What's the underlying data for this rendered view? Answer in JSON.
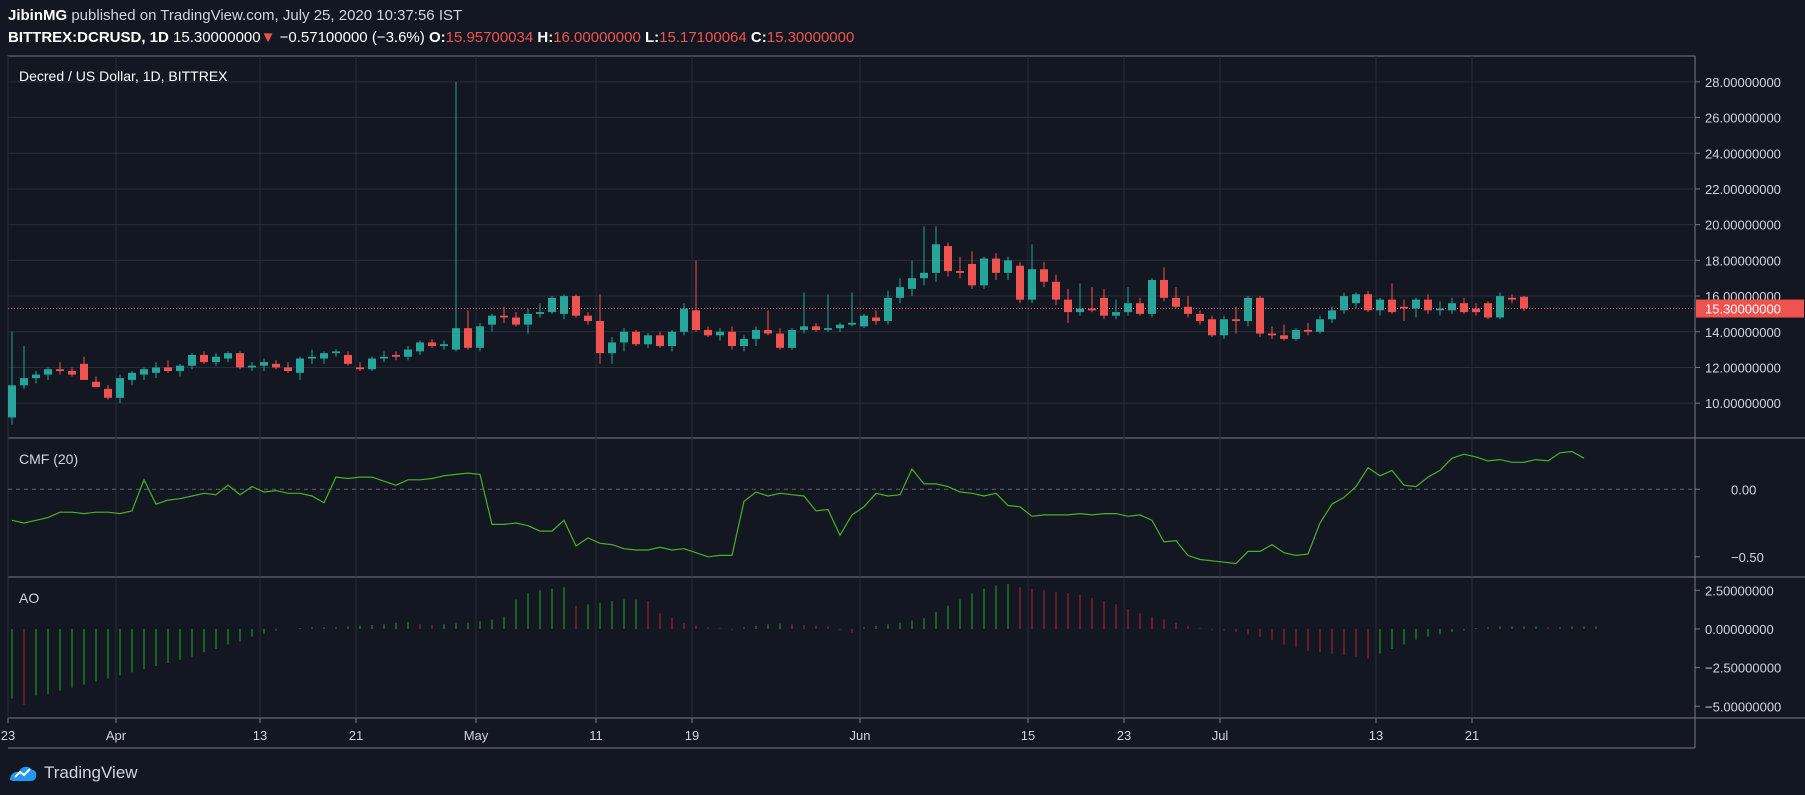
{
  "header": {
    "author": "JibinMG",
    "published_text": "published on TradingView.com, July 25, 2020 10:37:56 IST",
    "symbol": "BITTREX:DCRUSD, 1D",
    "last": "15.30000000",
    "change": "−0.57100000 (−3.6%)",
    "o_label": "O:",
    "o_value": "15.95700034",
    "h_label": "H:",
    "h_value": "16.00000000",
    "l_label": "L:",
    "l_value": "15.17100064",
    "c_label": "C:",
    "c_value": "15.30000000"
  },
  "footer": {
    "brand": "TradingView"
  },
  "colors": {
    "background": "#131722",
    "grid": "#2a2e39",
    "up": "#26a69a",
    "down": "#ef5350",
    "cmf_line": "#4caf27",
    "ao_up": "#26a629",
    "ao_down": "#b22833",
    "border": "#787b86"
  },
  "chart_data": [
    {
      "type": "candlestick",
      "title": "Decred / US Dollar, 1D, BITTREX",
      "ylim": [
        9,
        29
      ],
      "yticks": [
        "10.00000000",
        "12.00000000",
        "14.00000000",
        "16.00000000",
        "18.00000000",
        "20.00000000",
        "22.00000000",
        "24.00000000",
        "26.00000000",
        "28.00000000"
      ],
      "last_price_label": "15.30000000",
      "last_price": 15.3,
      "x_tick_labels": [
        "23",
        "Apr",
        "13",
        "21",
        "May",
        "11",
        "19",
        "Jun",
        "15",
        "23",
        "Jul",
        "13",
        "21"
      ],
      "x_tick_days": [
        0,
        9,
        21,
        29,
        39,
        49,
        57,
        71,
        85,
        93,
        101,
        114,
        122
      ],
      "candles": [
        {
          "o": 9.2,
          "h": 14.0,
          "l": 8.8,
          "c": 11.0
        },
        {
          "o": 11.0,
          "h": 13.2,
          "l": 10.8,
          "c": 11.4
        },
        {
          "o": 11.4,
          "h": 11.8,
          "l": 11.1,
          "c": 11.6
        },
        {
          "o": 11.6,
          "h": 12.0,
          "l": 11.3,
          "c": 11.9
        },
        {
          "o": 11.9,
          "h": 12.3,
          "l": 11.6,
          "c": 11.8
        },
        {
          "o": 11.8,
          "h": 12.0,
          "l": 11.5,
          "c": 11.6
        },
        {
          "o": 12.2,
          "h": 12.6,
          "l": 11.3,
          "c": 11.3
        },
        {
          "o": 11.2,
          "h": 11.5,
          "l": 10.9,
          "c": 10.9
        },
        {
          "o": 10.8,
          "h": 11.0,
          "l": 10.2,
          "c": 10.3
        },
        {
          "o": 10.3,
          "h": 11.6,
          "l": 10.0,
          "c": 11.4
        },
        {
          "o": 11.3,
          "h": 11.8,
          "l": 11.0,
          "c": 11.7
        },
        {
          "o": 11.6,
          "h": 12.0,
          "l": 11.3,
          "c": 11.9
        },
        {
          "o": 11.7,
          "h": 12.3,
          "l": 11.4,
          "c": 12.0
        },
        {
          "o": 12.0,
          "h": 12.4,
          "l": 11.7,
          "c": 11.8
        },
        {
          "o": 11.8,
          "h": 12.2,
          "l": 11.5,
          "c": 12.1
        },
        {
          "o": 12.1,
          "h": 12.8,
          "l": 11.9,
          "c": 12.7
        },
        {
          "o": 12.7,
          "h": 12.9,
          "l": 12.2,
          "c": 12.3
        },
        {
          "o": 12.3,
          "h": 12.8,
          "l": 12.1,
          "c": 12.6
        },
        {
          "o": 12.5,
          "h": 12.9,
          "l": 12.3,
          "c": 12.8
        },
        {
          "o": 12.8,
          "h": 12.9,
          "l": 11.9,
          "c": 12.0
        },
        {
          "o": 12.0,
          "h": 12.3,
          "l": 11.8,
          "c": 12.1
        },
        {
          "o": 12.1,
          "h": 12.5,
          "l": 11.8,
          "c": 12.3
        },
        {
          "o": 12.2,
          "h": 12.4,
          "l": 11.9,
          "c": 12.0
        },
        {
          "o": 12.0,
          "h": 12.3,
          "l": 11.7,
          "c": 11.8
        },
        {
          "o": 11.7,
          "h": 12.6,
          "l": 11.3,
          "c": 12.5
        },
        {
          "o": 12.5,
          "h": 13.0,
          "l": 12.2,
          "c": 12.6
        },
        {
          "o": 12.5,
          "h": 12.9,
          "l": 12.2,
          "c": 12.8
        },
        {
          "o": 12.8,
          "h": 13.0,
          "l": 12.6,
          "c": 12.9
        },
        {
          "o": 12.7,
          "h": 12.9,
          "l": 12.1,
          "c": 12.2
        },
        {
          "o": 12.0,
          "h": 12.3,
          "l": 11.8,
          "c": 11.9
        },
        {
          "o": 11.9,
          "h": 12.6,
          "l": 11.8,
          "c": 12.5
        },
        {
          "o": 12.5,
          "h": 12.9,
          "l": 12.3,
          "c": 12.6
        },
        {
          "o": 12.7,
          "h": 12.9,
          "l": 12.4,
          "c": 12.6
        },
        {
          "o": 12.6,
          "h": 13.2,
          "l": 12.4,
          "c": 13.0
        },
        {
          "o": 12.9,
          "h": 13.5,
          "l": 12.7,
          "c": 13.4
        },
        {
          "o": 13.4,
          "h": 13.6,
          "l": 13.1,
          "c": 13.2
        },
        {
          "o": 13.2,
          "h": 13.5,
          "l": 13.0,
          "c": 13.3
        },
        {
          "o": 13.0,
          "h": 28.0,
          "l": 12.9,
          "c": 14.2
        },
        {
          "o": 14.2,
          "h": 15.2,
          "l": 13.0,
          "c": 13.1
        },
        {
          "o": 13.1,
          "h": 14.5,
          "l": 12.9,
          "c": 14.3
        },
        {
          "o": 14.4,
          "h": 15.0,
          "l": 14.0,
          "c": 14.9
        },
        {
          "o": 14.9,
          "h": 15.4,
          "l": 14.5,
          "c": 14.8
        },
        {
          "o": 14.8,
          "h": 15.1,
          "l": 14.3,
          "c": 14.4
        },
        {
          "o": 14.4,
          "h": 15.3,
          "l": 13.9,
          "c": 15.0
        },
        {
          "o": 15.0,
          "h": 15.6,
          "l": 14.8,
          "c": 15.1
        },
        {
          "o": 15.1,
          "h": 16.0,
          "l": 15.0,
          "c": 15.9
        },
        {
          "o": 15.0,
          "h": 16.1,
          "l": 14.7,
          "c": 16.0
        },
        {
          "o": 16.0,
          "h": 16.1,
          "l": 14.8,
          "c": 14.9
        },
        {
          "o": 14.9,
          "h": 15.1,
          "l": 14.4,
          "c": 14.6
        },
        {
          "o": 14.6,
          "h": 16.1,
          "l": 12.2,
          "c": 12.8
        },
        {
          "o": 12.8,
          "h": 13.7,
          "l": 12.2,
          "c": 13.4
        },
        {
          "o": 13.4,
          "h": 14.2,
          "l": 12.9,
          "c": 14.0
        },
        {
          "o": 14.0,
          "h": 14.1,
          "l": 13.2,
          "c": 13.3
        },
        {
          "o": 13.3,
          "h": 13.9,
          "l": 13.1,
          "c": 13.8
        },
        {
          "o": 13.8,
          "h": 14.0,
          "l": 13.1,
          "c": 13.2
        },
        {
          "o": 13.2,
          "h": 14.1,
          "l": 12.9,
          "c": 14.0
        },
        {
          "o": 14.0,
          "h": 15.6,
          "l": 13.8,
          "c": 15.3
        },
        {
          "o": 15.2,
          "h": 18.0,
          "l": 14.0,
          "c": 14.1
        },
        {
          "o": 14.1,
          "h": 14.3,
          "l": 13.7,
          "c": 13.8
        },
        {
          "o": 13.8,
          "h": 14.2,
          "l": 13.5,
          "c": 14.0
        },
        {
          "o": 14.0,
          "h": 14.3,
          "l": 13.0,
          "c": 13.2
        },
        {
          "o": 13.2,
          "h": 13.8,
          "l": 12.9,
          "c": 13.6
        },
        {
          "o": 13.6,
          "h": 14.3,
          "l": 13.2,
          "c": 14.1
        },
        {
          "o": 14.1,
          "h": 15.2,
          "l": 13.8,
          "c": 13.9
        },
        {
          "o": 13.9,
          "h": 14.2,
          "l": 13.0,
          "c": 13.1
        },
        {
          "o": 13.1,
          "h": 14.2,
          "l": 13.0,
          "c": 14.1
        },
        {
          "o": 14.1,
          "h": 16.2,
          "l": 13.9,
          "c": 14.3
        },
        {
          "o": 14.3,
          "h": 14.5,
          "l": 14.0,
          "c": 14.1
        },
        {
          "o": 14.1,
          "h": 16.1,
          "l": 14.0,
          "c": 14.2
        },
        {
          "o": 14.2,
          "h": 14.5,
          "l": 14.0,
          "c": 14.4
        },
        {
          "o": 14.4,
          "h": 16.2,
          "l": 14.3,
          "c": 14.5
        },
        {
          "o": 14.3,
          "h": 15.0,
          "l": 14.2,
          "c": 14.9
        },
        {
          "o": 14.8,
          "h": 15.2,
          "l": 14.4,
          "c": 14.6
        },
        {
          "o": 14.6,
          "h": 16.3,
          "l": 14.4,
          "c": 15.9
        },
        {
          "o": 15.9,
          "h": 17.0,
          "l": 15.6,
          "c": 16.5
        },
        {
          "o": 16.4,
          "h": 18.0,
          "l": 16.0,
          "c": 17.0
        },
        {
          "o": 17.0,
          "h": 19.9,
          "l": 16.6,
          "c": 17.3
        },
        {
          "o": 17.3,
          "h": 19.9,
          "l": 16.8,
          "c": 18.9
        },
        {
          "o": 18.8,
          "h": 19.0,
          "l": 17.1,
          "c": 17.4
        },
        {
          "o": 17.4,
          "h": 18.2,
          "l": 17.0,
          "c": 17.3
        },
        {
          "o": 17.8,
          "h": 18.5,
          "l": 16.4,
          "c": 16.6
        },
        {
          "o": 16.6,
          "h": 18.2,
          "l": 16.4,
          "c": 18.1
        },
        {
          "o": 18.1,
          "h": 18.4,
          "l": 16.9,
          "c": 17.3
        },
        {
          "o": 17.3,
          "h": 18.2,
          "l": 16.9,
          "c": 18.0
        },
        {
          "o": 17.7,
          "h": 17.9,
          "l": 15.6,
          "c": 15.8
        },
        {
          "o": 15.8,
          "h": 18.9,
          "l": 15.6,
          "c": 17.5
        },
        {
          "o": 17.5,
          "h": 17.9,
          "l": 16.5,
          "c": 16.8
        },
        {
          "o": 16.8,
          "h": 17.2,
          "l": 15.5,
          "c": 15.8
        },
        {
          "o": 15.8,
          "h": 16.4,
          "l": 14.5,
          "c": 15.1
        },
        {
          "o": 15.1,
          "h": 16.7,
          "l": 14.9,
          "c": 15.3
        },
        {
          "o": 15.3,
          "h": 16.5,
          "l": 15.1,
          "c": 15.2
        },
        {
          "o": 15.9,
          "h": 16.4,
          "l": 14.7,
          "c": 14.9
        },
        {
          "o": 14.9,
          "h": 15.8,
          "l": 14.7,
          "c": 15.1
        },
        {
          "o": 15.1,
          "h": 16.5,
          "l": 14.9,
          "c": 15.6
        },
        {
          "o": 15.6,
          "h": 15.9,
          "l": 14.9,
          "c": 15.0
        },
        {
          "o": 15.0,
          "h": 17.0,
          "l": 14.8,
          "c": 16.9
        },
        {
          "o": 16.9,
          "h": 17.6,
          "l": 15.7,
          "c": 15.9
        },
        {
          "o": 15.9,
          "h": 16.5,
          "l": 15.3,
          "c": 15.4
        },
        {
          "o": 15.4,
          "h": 16.0,
          "l": 14.8,
          "c": 15.0
        },
        {
          "o": 15.0,
          "h": 15.2,
          "l": 14.4,
          "c": 14.6
        },
        {
          "o": 14.7,
          "h": 14.9,
          "l": 13.7,
          "c": 13.8
        },
        {
          "o": 13.8,
          "h": 14.9,
          "l": 13.6,
          "c": 14.7
        },
        {
          "o": 14.7,
          "h": 15.4,
          "l": 13.9,
          "c": 14.6
        },
        {
          "o": 14.6,
          "h": 16.0,
          "l": 14.3,
          "c": 15.9
        },
        {
          "o": 15.9,
          "h": 16.0,
          "l": 13.7,
          "c": 13.9
        },
        {
          "o": 13.9,
          "h": 14.3,
          "l": 13.6,
          "c": 13.8
        },
        {
          "o": 13.8,
          "h": 14.4,
          "l": 13.5,
          "c": 13.6
        },
        {
          "o": 13.6,
          "h": 14.2,
          "l": 13.5,
          "c": 14.1
        },
        {
          "o": 14.1,
          "h": 14.5,
          "l": 13.8,
          "c": 14.0
        },
        {
          "o": 14.0,
          "h": 14.9,
          "l": 13.9,
          "c": 14.7
        },
        {
          "o": 14.7,
          "h": 15.4,
          "l": 14.5,
          "c": 15.2
        },
        {
          "o": 15.2,
          "h": 16.2,
          "l": 15.0,
          "c": 16.0
        },
        {
          "o": 15.6,
          "h": 16.2,
          "l": 15.3,
          "c": 16.1
        },
        {
          "o": 16.1,
          "h": 16.3,
          "l": 15.1,
          "c": 15.2
        },
        {
          "o": 15.2,
          "h": 15.9,
          "l": 14.9,
          "c": 15.8
        },
        {
          "o": 15.8,
          "h": 16.7,
          "l": 15.0,
          "c": 15.1
        },
        {
          "o": 15.4,
          "h": 15.8,
          "l": 14.6,
          "c": 15.3
        },
        {
          "o": 15.3,
          "h": 15.9,
          "l": 14.8,
          "c": 15.8
        },
        {
          "o": 15.8,
          "h": 16.1,
          "l": 15.0,
          "c": 15.2
        },
        {
          "o": 15.2,
          "h": 15.7,
          "l": 14.9,
          "c": 15.3
        },
        {
          "o": 15.2,
          "h": 15.9,
          "l": 15.0,
          "c": 15.6
        },
        {
          "o": 15.6,
          "h": 15.9,
          "l": 15.0,
          "c": 15.1
        },
        {
          "o": 15.3,
          "h": 15.6,
          "l": 14.9,
          "c": 15.1
        },
        {
          "o": 15.6,
          "h": 15.7,
          "l": 14.7,
          "c": 14.8
        },
        {
          "o": 14.8,
          "h": 16.2,
          "l": 14.7,
          "c": 16.0
        },
        {
          "o": 15.9,
          "h": 16.1,
          "l": 15.6,
          "c": 15.8
        },
        {
          "o": 15.96,
          "h": 16.0,
          "l": 15.17,
          "c": 15.3
        }
      ]
    },
    {
      "type": "line",
      "title": "CMF (20)",
      "ylim": [
        -0.62,
        0.35
      ],
      "ytick_labels": [
        "0.00",
        "−0.50"
      ],
      "yticks": [
        0,
        -0.5
      ],
      "zero_line": true,
      "values": [
        -0.23,
        -0.25,
        -0.23,
        -0.21,
        -0.17,
        -0.17,
        -0.18,
        -0.17,
        -0.17,
        -0.18,
        -0.16,
        0.07,
        -0.11,
        -0.08,
        -0.07,
        -0.05,
        -0.03,
        -0.04,
        0.03,
        -0.04,
        0.02,
        -0.02,
        -0.01,
        -0.03,
        -0.03,
        -0.05,
        -0.1,
        0.09,
        0.08,
        0.09,
        0.09,
        0.06,
        0.03,
        0.07,
        0.07,
        0.08,
        0.1,
        0.11,
        0.12,
        0.11,
        -0.26,
        -0.26,
        -0.25,
        -0.27,
        -0.31,
        -0.31,
        -0.23,
        -0.42,
        -0.36,
        -0.4,
        -0.41,
        -0.44,
        -0.45,
        -0.45,
        -0.43,
        -0.45,
        -0.44,
        -0.47,
        -0.5,
        -0.49,
        -0.49,
        -0.09,
        -0.02,
        -0.05,
        -0.03,
        -0.04,
        -0.05,
        -0.16,
        -0.15,
        -0.34,
        -0.19,
        -0.13,
        -0.03,
        -0.05,
        -0.04,
        0.15,
        0.04,
        0.04,
        0.02,
        -0.02,
        -0.03,
        -0.05,
        -0.03,
        -0.12,
        -0.13,
        -0.2,
        -0.19,
        -0.19,
        -0.19,
        -0.18,
        -0.19,
        -0.18,
        -0.18,
        -0.2,
        -0.19,
        -0.23,
        -0.39,
        -0.38,
        -0.49,
        -0.52,
        -0.53,
        -0.54,
        -0.55,
        -0.46,
        -0.46,
        -0.41,
        -0.47,
        -0.49,
        -0.48,
        -0.25,
        -0.11,
        -0.06,
        0.02,
        0.16,
        0.1,
        0.14,
        0.03,
        0.02,
        0.09,
        0.14,
        0.23,
        0.26,
        0.24,
        0.21,
        0.22,
        0.2,
        0.2,
        0.22,
        0.21,
        0.27,
        0.28,
        0.23
      ]
    },
    {
      "type": "bar",
      "title": "AO",
      "ylim": [
        -5.5,
        3.1
      ],
      "ytick_labels": [
        "2.50000000",
        "0.00000000",
        "−2.50000000",
        "−5.00000000"
      ],
      "yticks": [
        2.5,
        0,
        -2.5,
        -5
      ],
      "values": [
        -4.5,
        -4.9,
        -4.3,
        -4.2,
        -4.0,
        -3.8,
        -3.6,
        -3.4,
        -3.2,
        -3.0,
        -2.8,
        -2.6,
        -2.4,
        -2.2,
        -2.0,
        -1.8,
        -1.5,
        -1.3,
        -1.0,
        -0.8,
        -0.5,
        -0.3,
        -0.1,
        0.0,
        0.05,
        0.1,
        0.1,
        0.1,
        0.15,
        0.2,
        0.25,
        0.3,
        0.4,
        0.45,
        0.3,
        0.25,
        0.3,
        0.35,
        0.4,
        0.5,
        0.6,
        0.8,
        1.9,
        2.3,
        2.5,
        2.6,
        2.7,
        1.5,
        1.6,
        1.7,
        1.8,
        1.9,
        1.9,
        1.8,
        1.0,
        0.7,
        0.4,
        0.2,
        0.1,
        0.05,
        -0.05,
        0.1,
        0.2,
        0.3,
        0.35,
        0.3,
        0.25,
        0.2,
        0.15,
        -0.05,
        -0.25,
        0.1,
        0.2,
        0.3,
        0.4,
        0.55,
        0.7,
        1.1,
        1.5,
        1.9,
        2.3,
        2.6,
        2.8,
        2.9,
        2.7,
        2.6,
        2.5,
        2.4,
        2.3,
        2.2,
        2.0,
        1.8,
        1.6,
        1.3,
        1.0,
        0.8,
        0.6,
        0.4,
        0.2,
        0.05,
        -0.05,
        -0.1,
        -0.2,
        -0.35,
        -0.5,
        -0.7,
        -1.0,
        -1.2,
        -1.4,
        -1.5,
        -1.6,
        -1.7,
        -1.8,
        -1.9,
        -1.6,
        -1.3,
        -1.0,
        -0.7,
        -0.5,
        -0.35,
        -0.2,
        -0.1,
        0.05,
        0.1,
        0.15,
        0.15,
        0.15,
        0.15,
        0.1,
        0.1,
        0.15,
        0.15,
        0.15
      ]
    }
  ]
}
